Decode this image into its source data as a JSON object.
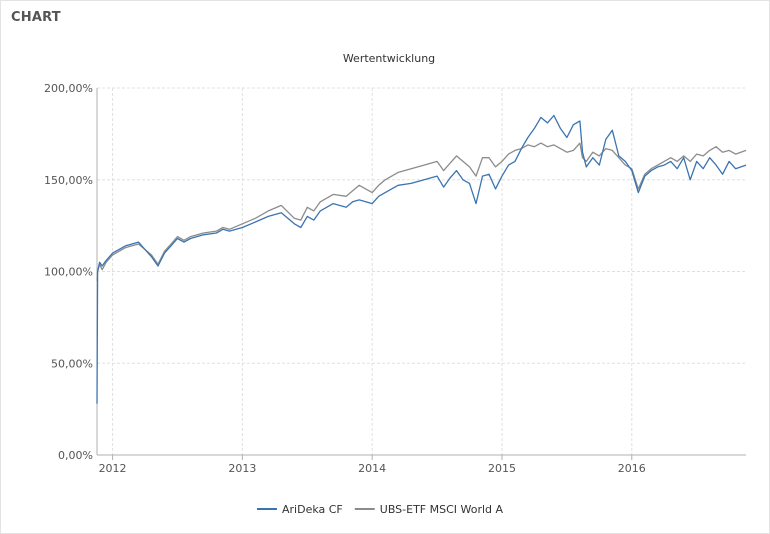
{
  "header": {
    "title": "CHART"
  },
  "colors": {
    "series_1": "#3a74b2",
    "series_2": "#8c8c8c",
    "grid": "#e0e0e0",
    "axis": "#b0b0b0",
    "text": "#555555"
  },
  "chart_data": {
    "type": "line",
    "title": "Wertentwicklung",
    "xlabel": "",
    "ylabel": "",
    "xlim": [
      2011.88,
      2016.88
    ],
    "ylim": [
      0,
      200
    ],
    "y_ticks": [
      {
        "value": 0,
        "label": "0,00%"
      },
      {
        "value": 50,
        "label": "50,00%"
      },
      {
        "value": 100,
        "label": "100,00%"
      },
      {
        "value": 150,
        "label": "150,00%"
      },
      {
        "value": 200,
        "label": "200,00%"
      }
    ],
    "x_ticks": [
      {
        "value": 2012,
        "label": "2012"
      },
      {
        "value": 2013,
        "label": "2013"
      },
      {
        "value": 2014,
        "label": "2014"
      },
      {
        "value": 2015,
        "label": "2015"
      },
      {
        "value": 2016,
        "label": "2016"
      }
    ],
    "grid": true,
    "legend_position": "bottom-center",
    "series": [
      {
        "name": "AriDeka CF",
        "x": [
          2011.88,
          2011.885,
          2011.9,
          2011.92,
          2011.95,
          2012.0,
          2012.1,
          2012.2,
          2012.25,
          2012.3,
          2012.35,
          2012.4,
          2012.45,
          2012.5,
          2012.55,
          2012.6,
          2012.7,
          2012.8,
          2012.85,
          2012.9,
          2013.0,
          2013.1,
          2013.2,
          2013.3,
          2013.4,
          2013.45,
          2013.5,
          2013.55,
          2013.6,
          2013.7,
          2013.8,
          2013.85,
          2013.9,
          2014.0,
          2014.05,
          2014.1,
          2014.2,
          2014.3,
          2014.4,
          2014.5,
          2014.55,
          2014.6,
          2014.65,
          2014.7,
          2014.75,
          2014.8,
          2014.85,
          2014.9,
          2014.95,
          2015.0,
          2015.05,
          2015.1,
          2015.15,
          2015.2,
          2015.25,
          2015.3,
          2015.35,
          2015.4,
          2015.45,
          2015.5,
          2015.55,
          2015.6,
          2015.62,
          2015.65,
          2015.7,
          2015.75,
          2015.8,
          2015.85,
          2015.9,
          2015.95,
          2016.0,
          2016.05,
          2016.1,
          2016.15,
          2016.2,
          2016.25,
          2016.3,
          2016.35,
          2016.4,
          2016.45,
          2016.5,
          2016.55,
          2016.6,
          2016.65,
          2016.7,
          2016.75,
          2016.8,
          2016.88
        ],
        "values": [
          28,
          100,
          105,
          103,
          106,
          110,
          114,
          116,
          112,
          108,
          103,
          110,
          114,
          118,
          116,
          118,
          120,
          121,
          123,
          122,
          124,
          127,
          130,
          132,
          126,
          124,
          130,
          128,
          133,
          137,
          135,
          138,
          139,
          137,
          141,
          143,
          147,
          148,
          150,
          152,
          146,
          151,
          155,
          150,
          148,
          137,
          152,
          153,
          145,
          152,
          158,
          160,
          167,
          173,
          178,
          184,
          181,
          185,
          178,
          173,
          180,
          182,
          165,
          157,
          162,
          158,
          172,
          177,
          163,
          160,
          155,
          143,
          152,
          155,
          157,
          158,
          160,
          156,
          162,
          150,
          160,
          156,
          162,
          158,
          153,
          160,
          156,
          158
        ]
      },
      {
        "name": "UBS-ETF MSCI World A",
        "x": [
          2011.88,
          2011.885,
          2011.9,
          2011.92,
          2011.95,
          2012.0,
          2012.1,
          2012.2,
          2012.25,
          2012.3,
          2012.35,
          2012.4,
          2012.45,
          2012.5,
          2012.55,
          2012.6,
          2012.7,
          2012.8,
          2012.85,
          2012.9,
          2013.0,
          2013.1,
          2013.2,
          2013.3,
          2013.4,
          2013.45,
          2013.5,
          2013.55,
          2013.6,
          2013.7,
          2013.8,
          2013.85,
          2013.9,
          2014.0,
          2014.05,
          2014.1,
          2014.2,
          2014.3,
          2014.4,
          2014.5,
          2014.55,
          2014.6,
          2014.65,
          2014.7,
          2014.75,
          2014.8,
          2014.85,
          2014.9,
          2014.95,
          2015.0,
          2015.05,
          2015.1,
          2015.15,
          2015.2,
          2015.25,
          2015.3,
          2015.35,
          2015.4,
          2015.45,
          2015.5,
          2015.55,
          2015.6,
          2015.62,
          2015.65,
          2015.7,
          2015.75,
          2015.8,
          2015.85,
          2015.9,
          2015.95,
          2016.0,
          2016.05,
          2016.1,
          2016.15,
          2016.2,
          2016.25,
          2016.3,
          2016.35,
          2016.4,
          2016.45,
          2016.5,
          2016.55,
          2016.6,
          2016.65,
          2016.7,
          2016.75,
          2016.8,
          2016.88
        ],
        "values": [
          95,
          100,
          104,
          101,
          105,
          109,
          113,
          115,
          112,
          109,
          104,
          111,
          115,
          119,
          117,
          119,
          121,
          122,
          124,
          123,
          126,
          129,
          133,
          136,
          129,
          128,
          135,
          133,
          138,
          142,
          141,
          144,
          147,
          143,
          147,
          150,
          154,
          156,
          158,
          160,
          155,
          159,
          163,
          160,
          157,
          152,
          162,
          162,
          157,
          160,
          164,
          166,
          167,
          169,
          168,
          170,
          168,
          169,
          167,
          165,
          166,
          170,
          162,
          160,
          165,
          163,
          167,
          166,
          162,
          158,
          156,
          145,
          153,
          156,
          158,
          160,
          162,
          160,
          163,
          160,
          164,
          163,
          166,
          168,
          165,
          166,
          164,
          166
        ]
      }
    ]
  }
}
